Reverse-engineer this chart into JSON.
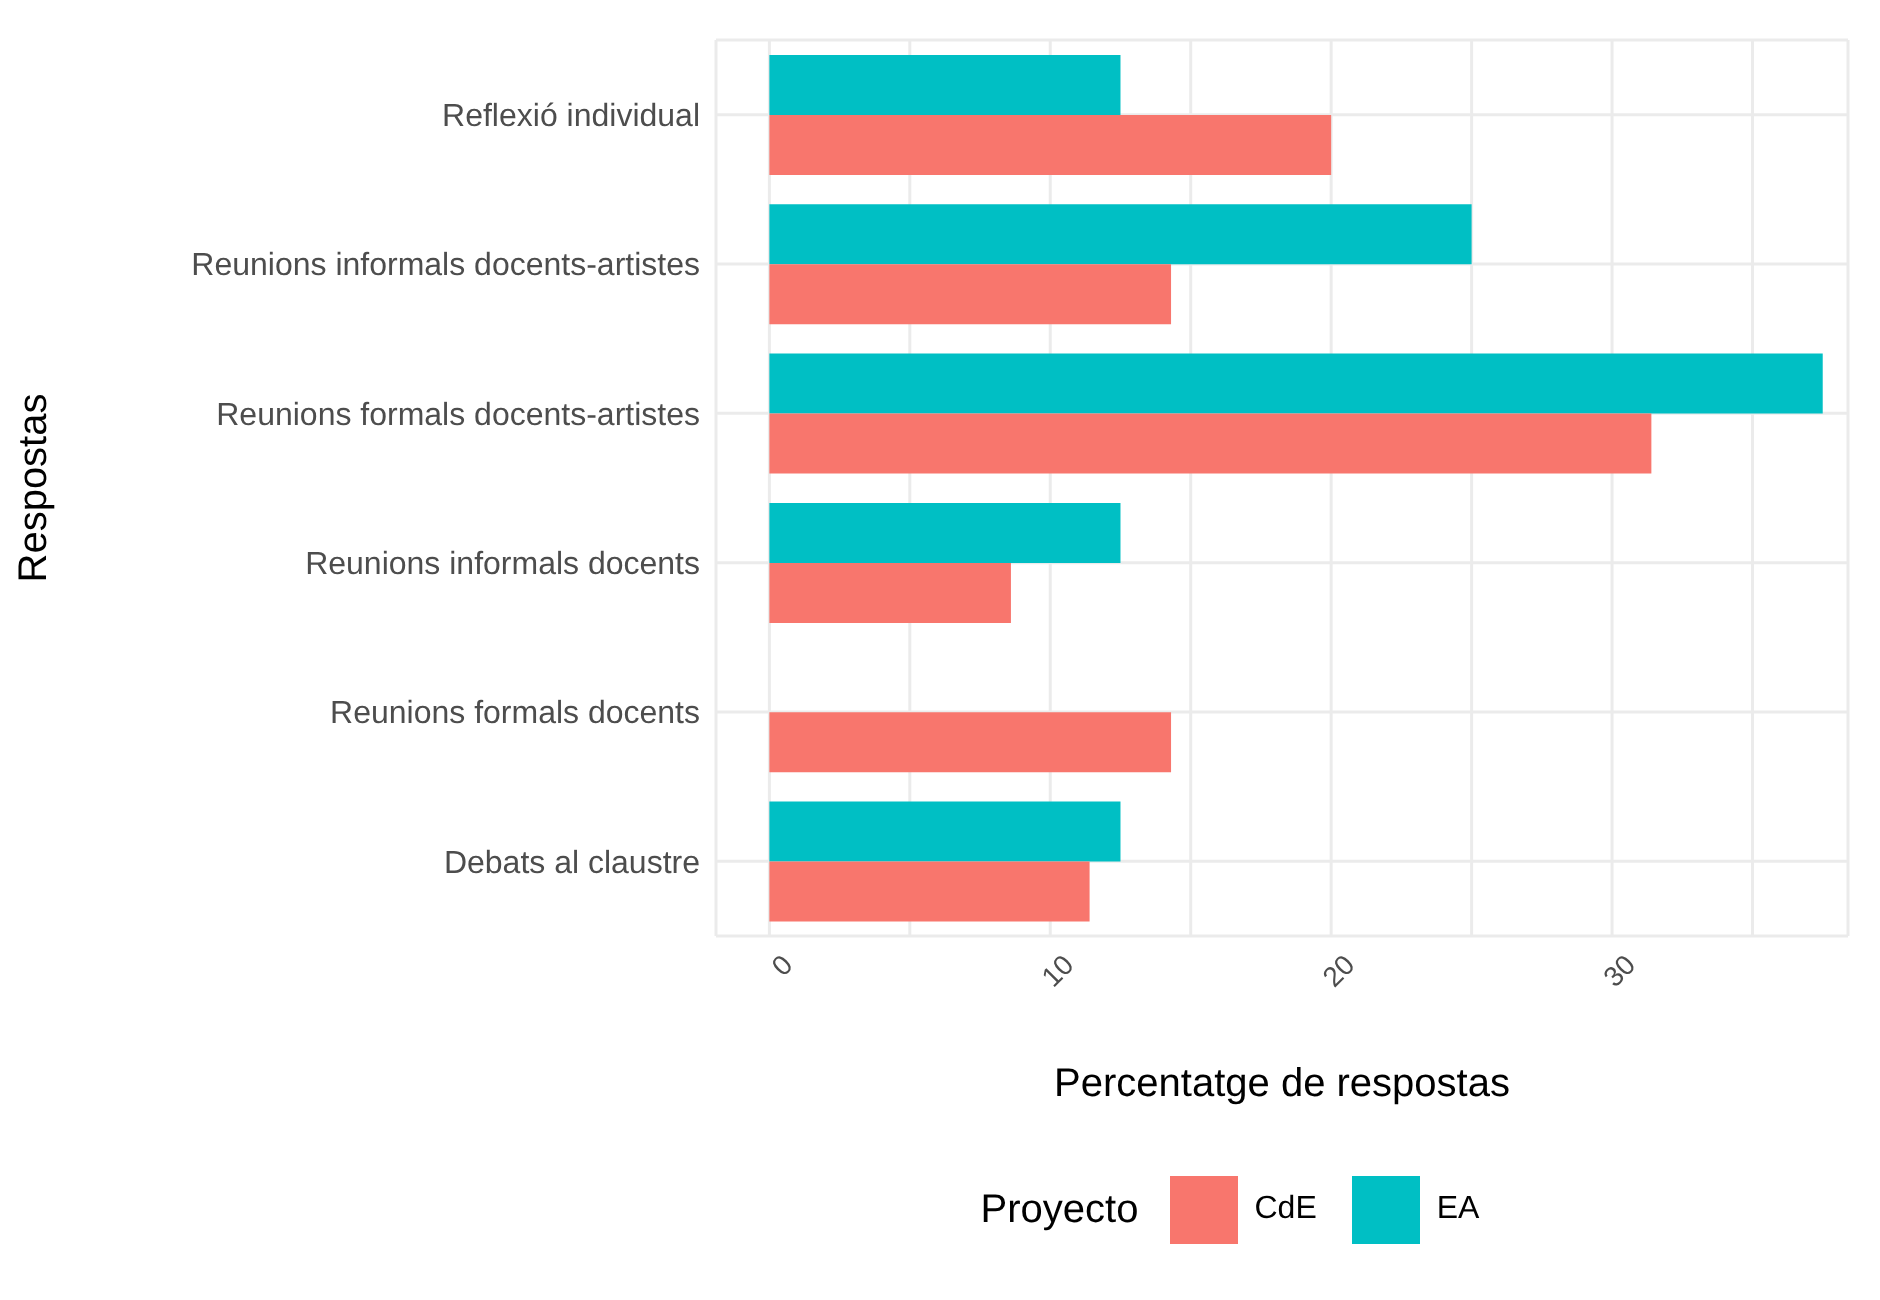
{
  "chart_data": {
    "type": "bar",
    "orientation": "horizontal",
    "xlabel": "Percentatge de respostas",
    "ylabel": "Respostas",
    "legend_title": "Proyecto",
    "legend": "bottom",
    "grid": true,
    "categories": [
      "Reflexió individual",
      "Reunions informals docents-artistes",
      "Reunions formals docents-artistes",
      "Reunions informals docents",
      "Reunions formals docents",
      "Debats al claustre"
    ],
    "series": [
      {
        "name": "CdE",
        "color": "#f8766d",
        "values": [
          20,
          14.3,
          31.4,
          8.6,
          14.3,
          11.4
        ]
      },
      {
        "name": "EA",
        "color": "#00bfc4",
        "values": [
          12.5,
          25,
          37.5,
          12.5,
          null,
          12.5
        ]
      }
    ],
    "xlim": [
      -1.9,
      38.4
    ],
    "xticks": [
      0,
      {
        "value": 5,
        "label": null
      },
      10,
      {
        "value": 15,
        "label": null
      },
      20,
      {
        "value": 25,
        "label": null
      },
      30,
      {
        "value": 35,
        "label": null
      }
    ]
  }
}
